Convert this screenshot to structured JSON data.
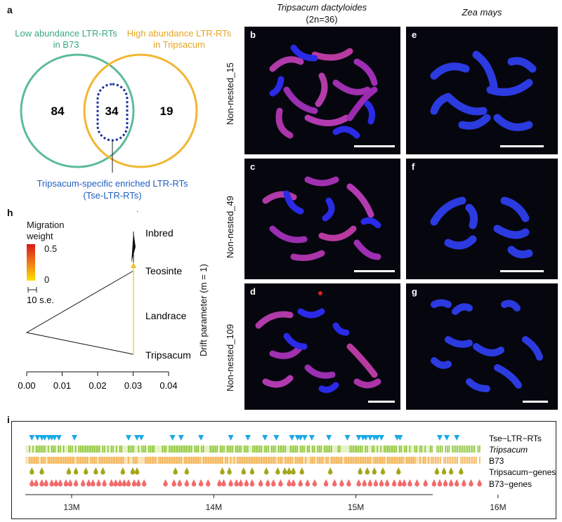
{
  "panel_letters": {
    "a": "a",
    "b": "b",
    "c": "c",
    "d": "d",
    "e": "e",
    "f": "f",
    "g": "g",
    "h": "h",
    "i": "i"
  },
  "venn": {
    "left_set_label_line1": "Low abundance LTR-RTs",
    "left_set_label_line2": "in B73",
    "right_set_label_line1": "High abundance LTR-RTs",
    "right_set_label_line2": "in Tripsacum",
    "left_only": "84",
    "intersection": "34",
    "right_only": "19",
    "callout_line1": "Tripsacum-specific enriched LTR-RTs",
    "callout_line2": "(Tse-LTR-RTs)",
    "colors": {
      "left": "#5dbb9a",
      "right": "#f2b632",
      "callout": "#1f5fbf",
      "dotted": "#1c2f9e"
    }
  },
  "microscopy": {
    "col1_title": "Tripsacum dactyloides",
    "col1_subtitle": "(2n=36)",
    "col2_title": "Zea mays",
    "row_labels": [
      "Non-nested_15",
      "Non-nested_49",
      "Non-nested_109"
    ]
  },
  "treemix": {
    "legend_title_line1": "Migration",
    "legend_title_line2": "weight",
    "legend_max": "0.5",
    "legend_min": "0",
    "scale_label": "10 s.e.",
    "taxa": [
      "Inbred",
      "Teosinte",
      "Landrace",
      "Tripsacum"
    ],
    "xaxis_label": "Drift parameter (m = 1)",
    "xticks": [
      "0.00",
      "0.01",
      "0.02",
      "0.03",
      "0.04"
    ]
  },
  "track": {
    "labels": [
      "Tse−LTR−RTs",
      "Tripsacum",
      "B73",
      "Tripsacum−genes",
      "B73−genes"
    ],
    "xticks": [
      "13M",
      "14M",
      "15M",
      "16M"
    ],
    "colors": {
      "tse": "#1aa9e6",
      "tripsacum": "#7cc020",
      "b73": "#f2a940",
      "tgenes": "#a5a51a",
      "bgenes": "#f26b6b"
    }
  },
  "chart_data": [
    {
      "type": "diagram",
      "title": "",
      "sets": [
        "Low abundance LTR-RTs in B73",
        "High abundance LTR-RTs in Tripsacum"
      ],
      "regions": {
        "left_only": 84,
        "both": 34,
        "right_only": 19
      }
    },
    {
      "type": "line",
      "title": "",
      "xlabel": "Drift parameter (m = 1)",
      "xlim": [
        0,
        0.04
      ],
      "leaves": [
        {
          "name": "Inbred",
          "drift": 0.0298
        },
        {
          "name": "Teosinte",
          "drift": 0.0302
        },
        {
          "name": "Landrace",
          "drift": 0.0298
        },
        {
          "name": "Tripsacum",
          "drift": 0.03
        }
      ],
      "root_x": 0.0,
      "migration_weight_range": [
        0,
        0.5
      ]
    },
    {
      "type": "scatter",
      "title": "",
      "xlim": [
        "12.7M",
        "15.9M"
      ],
      "xticks": [
        "13M",
        "14M",
        "15M",
        "16M"
      ],
      "tracks": [
        "Tse−LTR−RTs",
        "Tripsacum",
        "B73",
        "Tripsacum−genes",
        "B73−genes"
      ],
      "tse_positions_M": [
        12.72,
        12.76,
        12.79,
        12.81,
        12.84,
        12.86,
        12.88,
        12.91,
        13.02,
        13.4,
        13.46,
        13.49,
        13.71,
        13.77,
        13.91,
        14.12,
        14.24,
        14.36,
        14.44,
        14.55,
        14.59,
        14.61,
        14.64,
        14.69,
        14.81,
        14.94,
        15.02,
        15.05,
        15.07,
        15.1,
        15.13,
        15.15,
        15.18,
        15.29,
        15.31,
        15.59,
        15.64,
        15.71
      ],
      "tripsacum_gene_positions_M": [
        12.72,
        12.79,
        12.98,
        13.03,
        13.1,
        13.17,
        13.22,
        13.36,
        13.43,
        13.46,
        13.73,
        13.81,
        14.06,
        14.11,
        14.21,
        14.27,
        14.37,
        14.45,
        14.5,
        14.53,
        14.56,
        14.62,
        14.82,
        15.03,
        15.08,
        15.13,
        15.19,
        15.3,
        15.57,
        15.62,
        15.67,
        15.74
      ],
      "b73_gene_positions_M": [
        12.72,
        12.75,
        12.79,
        12.82,
        12.86,
        12.89,
        12.92,
        12.96,
        12.99,
        13.03,
        13.08,
        13.12,
        13.15,
        13.19,
        13.23,
        13.28,
        13.31,
        13.34,
        13.37,
        13.4,
        13.44,
        13.47,
        13.51,
        13.66,
        13.72,
        13.76,
        13.81,
        13.86,
        13.91,
        13.96,
        14.04,
        14.07,
        14.12,
        14.16,
        14.19,
        14.23,
        14.27,
        14.33,
        14.38,
        14.42,
        14.47,
        14.53,
        14.56,
        14.61,
        14.66,
        14.71,
        14.79,
        14.85,
        14.9,
        14.95,
        15.02,
        15.06,
        15.1,
        15.14,
        15.18,
        15.22,
        15.27,
        15.31,
        15.34,
        15.38,
        15.43,
        15.49,
        15.55,
        15.59,
        15.63,
        15.67,
        15.71,
        15.76,
        15.81,
        15.87
      ]
    }
  ]
}
